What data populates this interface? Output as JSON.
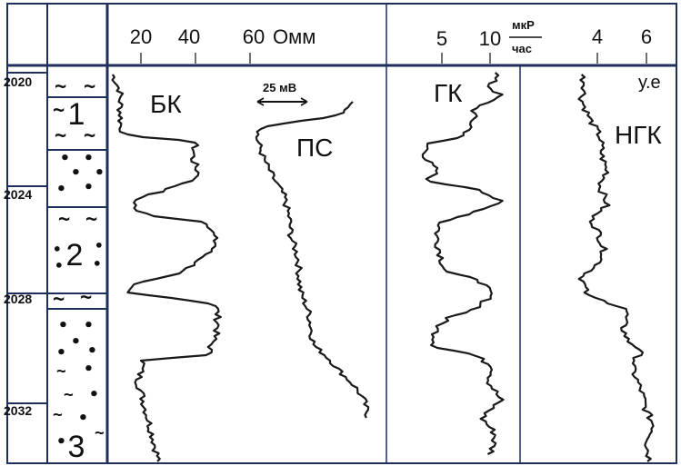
{
  "depth_labels": [
    "2020",
    "2024",
    "2028",
    "2032"
  ],
  "depth_values_m": [
    2020,
    2024,
    2028,
    2032
  ],
  "layer_labels": [
    "1",
    "2",
    "3"
  ],
  "bk_scale": {
    "ticks": [
      "20",
      "40",
      "60"
    ],
    "unit": "Омм",
    "curve_label": "БК"
  },
  "ps_scale": {
    "scale_label": "25 мВ",
    "curve_label": "ПС"
  },
  "gk_scale": {
    "ticks": [
      "5",
      "10"
    ],
    "unit_numerator": "мкР",
    "unit_denominator": "час",
    "curve_label": "ГК"
  },
  "ngk_scale": {
    "ticks": [
      "4",
      "6"
    ],
    "unit": "у.е",
    "curve_label": "НГК"
  },
  "colors": {
    "frame": "#1f2f5c",
    "curve": "#1a1a1a",
    "background": "#ffffff"
  },
  "lithology_symbols": {
    "clay": "~",
    "sand": "•"
  }
}
